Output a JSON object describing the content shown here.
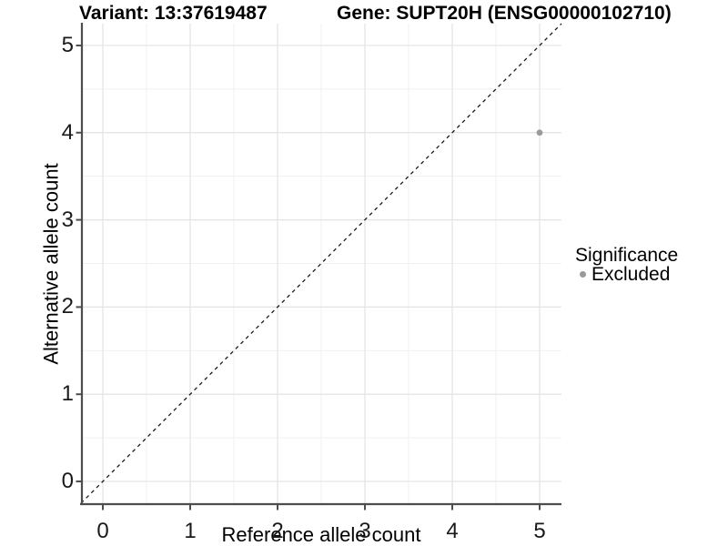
{
  "chart_data": {
    "type": "scatter",
    "title_variant": "Variant: 13:37619487",
    "title_gene": "Gene: SUPT20H (ENSG00000102710)",
    "xlabel": "Reference allele count",
    "ylabel": "Alternative allele count",
    "xlim": [
      -0.25,
      5.25
    ],
    "ylim": [
      -0.25,
      5.25
    ],
    "x_ticks": [
      0,
      1,
      2,
      3,
      4,
      5
    ],
    "y_ticks": [
      0,
      1,
      2,
      3,
      4,
      5
    ],
    "grid": "major+minor",
    "points": [
      {
        "x": 5,
        "y": 4,
        "series": "Excluded",
        "color": "#9a9a9a"
      }
    ],
    "identity_line": {
      "style": "dashed",
      "slope": 1,
      "intercept": 0,
      "color": "#1a1a1a"
    },
    "legend": {
      "title": "Significance",
      "position": "right",
      "items": [
        {
          "label": "Excluded",
          "color": "#9a9a9a",
          "marker": "circle"
        }
      ]
    },
    "colors": {
      "grid_major": "#e3e3e3",
      "grid_minor": "#f1f1f1",
      "axis_line": "#4d4d4d",
      "text": "#000000",
      "background": "#ffffff"
    }
  }
}
